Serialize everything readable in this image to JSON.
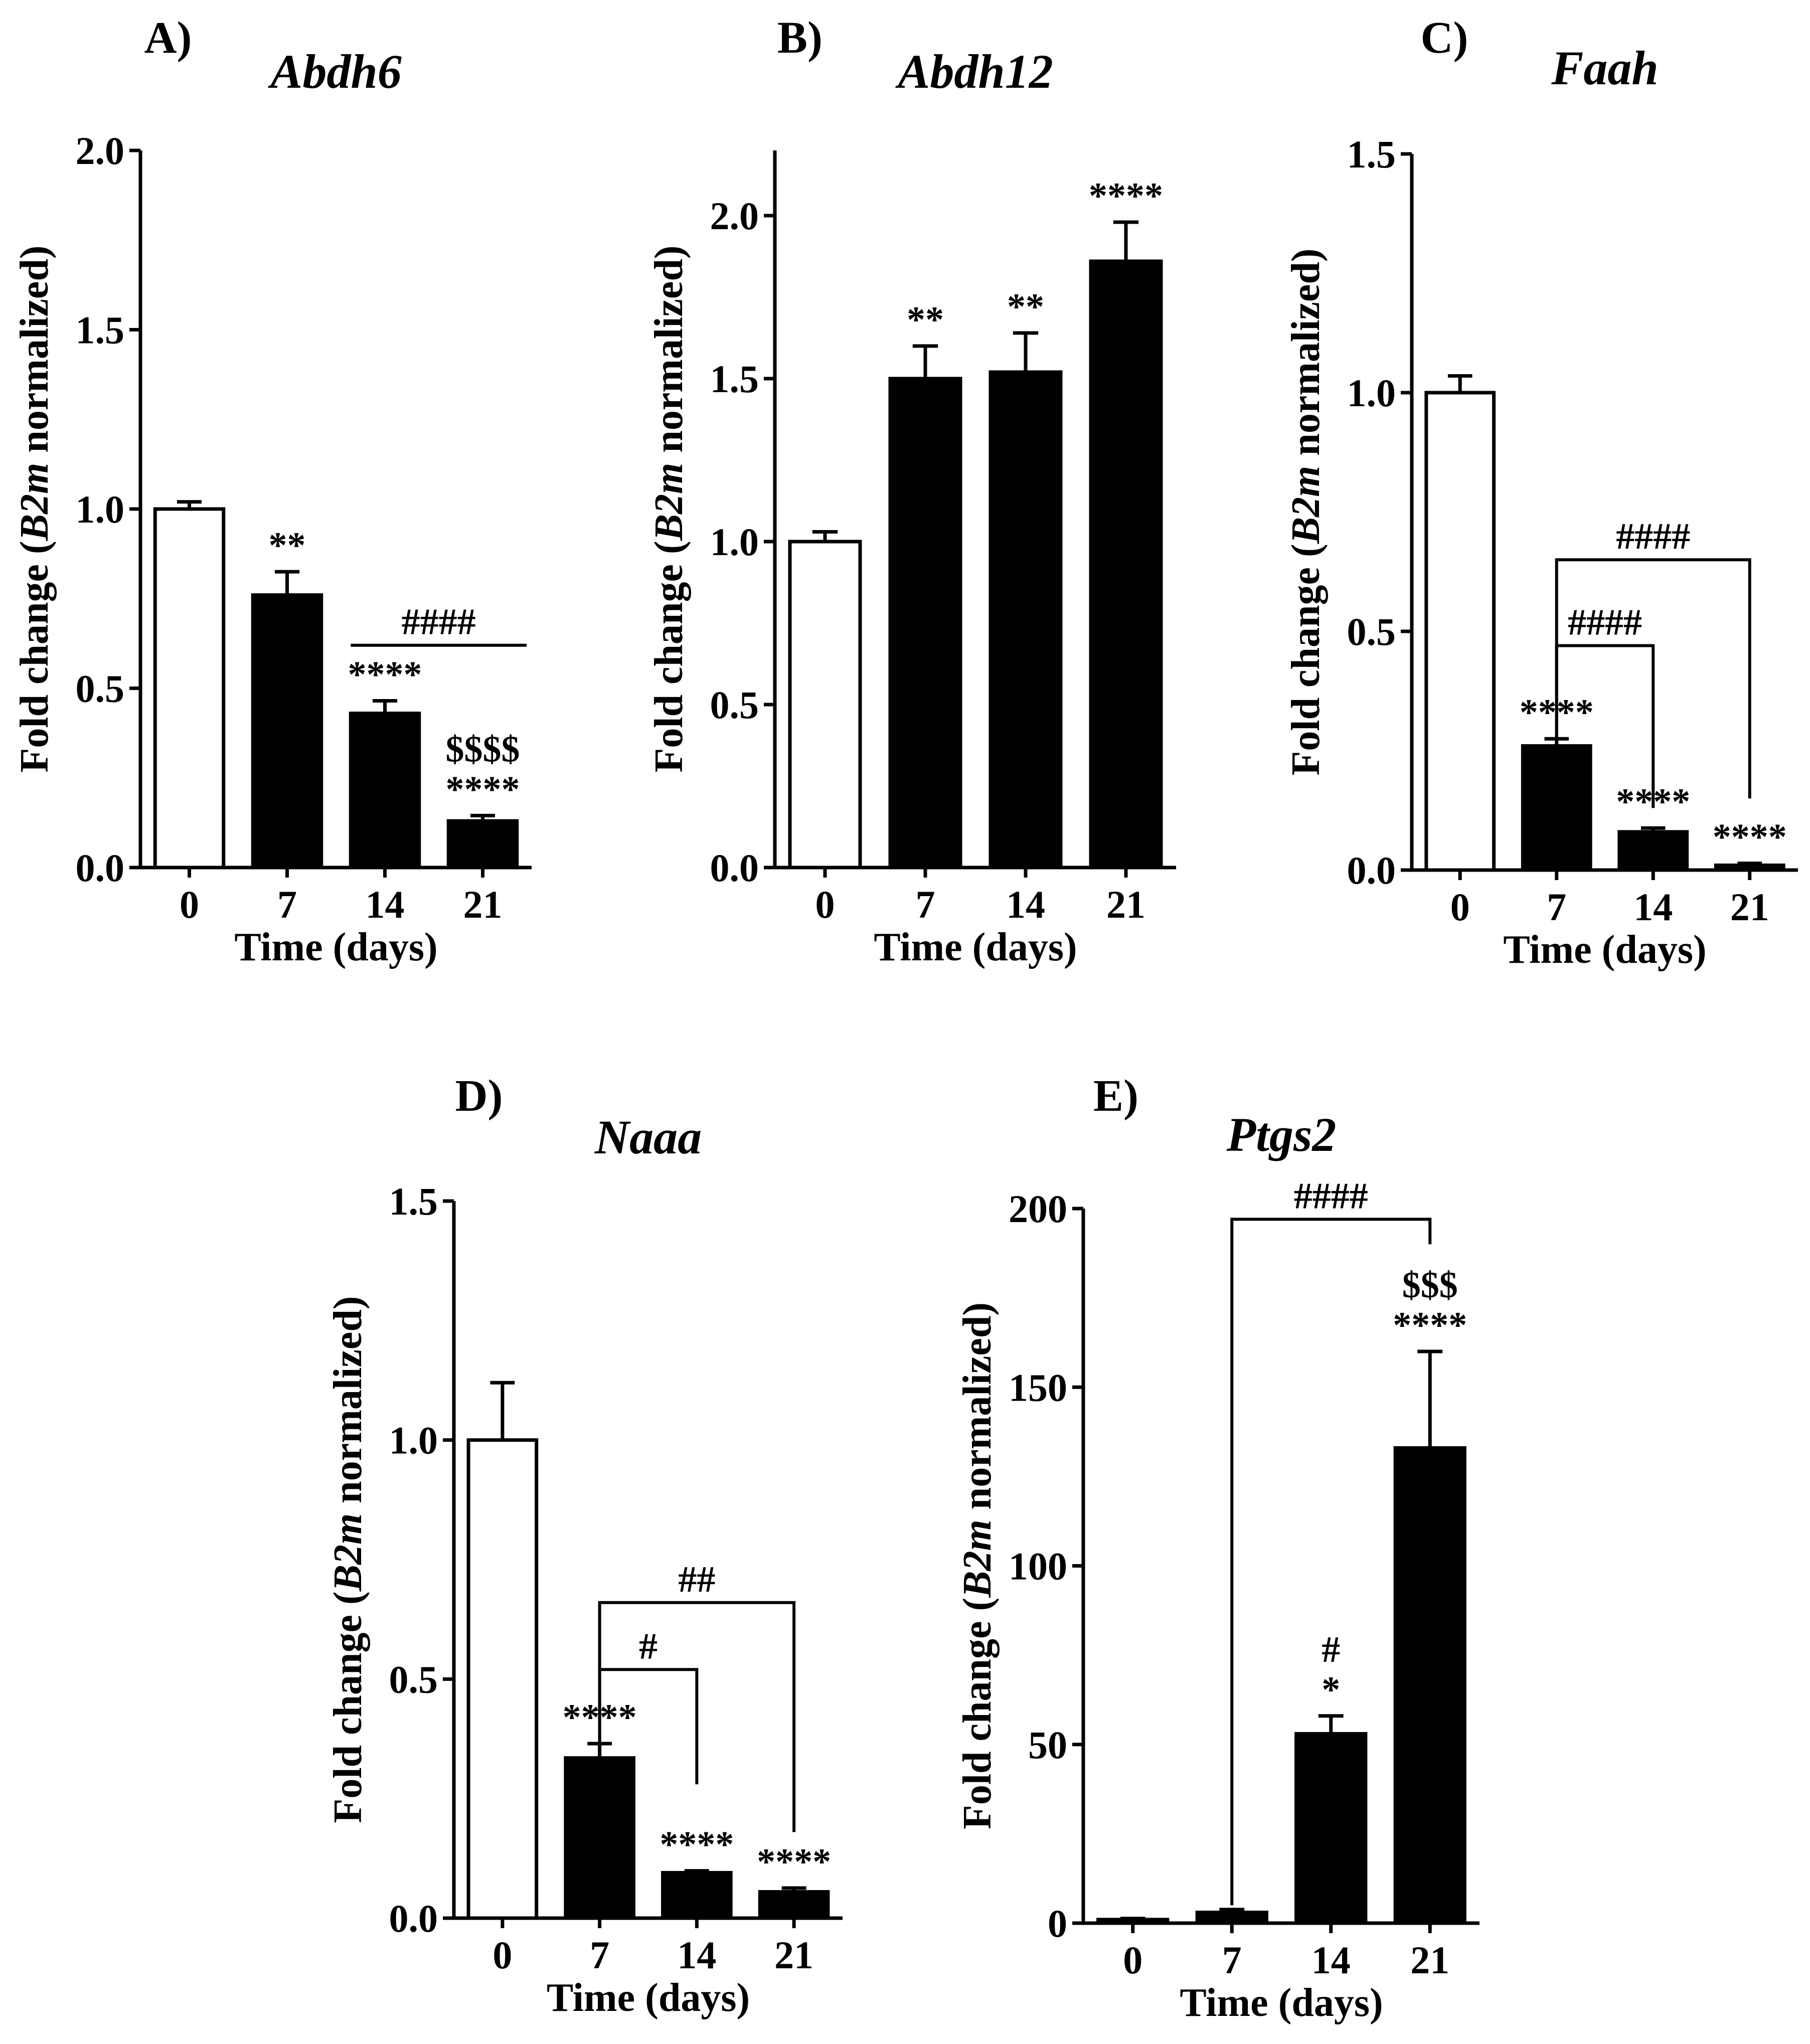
{
  "figure": {
    "xlabel": "Time (days)",
    "ylabel": {
      "prefix": "Fold change (",
      "gene": "B2m",
      "suffix": " normalized)"
    }
  },
  "colors": {
    "control": "#ffffff",
    "treated": "#000000",
    "outline": "#000000"
  },
  "chart_data": [
    {
      "type": "bar",
      "panel": "A)",
      "title": "Abdh6",
      "categories": [
        "0",
        "7",
        "14",
        "21"
      ],
      "values": [
        1.0,
        0.76,
        0.43,
        0.13
      ],
      "errors": [
        0.02,
        0.065,
        0.035,
        0.015
      ],
      "fills": [
        "white",
        "black",
        "black",
        "black"
      ],
      "ylim": [
        0,
        2.0
      ],
      "yticks": [
        "0.0",
        "0.5",
        "1.0",
        "1.5",
        "2.0"
      ],
      "xlabel": "Time (days)",
      "ylabel": "Fold change (B2m normalized)",
      "annotations": [
        {
          "bar": 1,
          "lines": [
            "**"
          ]
        },
        {
          "bar": 2,
          "lines": [
            "****"
          ]
        },
        {
          "bar": 3,
          "lines": [
            "$$$$",
            "****"
          ]
        }
      ],
      "comparisons": [
        {
          "from": 2,
          "to": 3,
          "label": "####",
          "style": "line",
          "y": 0.62
        }
      ]
    },
    {
      "type": "bar",
      "panel": "B)",
      "title": "Abdh12",
      "categories": [
        "0",
        "7",
        "14",
        "21"
      ],
      "values": [
        1.0,
        1.5,
        1.52,
        1.86
      ],
      "errors": [
        0.03,
        0.1,
        0.12,
        0.12
      ],
      "fills": [
        "white",
        "black",
        "black",
        "black"
      ],
      "ylim": [
        0,
        2.2
      ],
      "yticks": [
        "0.0",
        "0.5",
        "1.0",
        "1.5",
        "2.0"
      ],
      "xlabel": "Time (days)",
      "ylabel": "Fold change (B2m normalized)",
      "annotations": [
        {
          "bar": 1,
          "lines": [
            "**"
          ]
        },
        {
          "bar": 2,
          "lines": [
            "**"
          ]
        },
        {
          "bar": 3,
          "lines": [
            "****"
          ]
        }
      ],
      "comparisons": []
    },
    {
      "type": "bar",
      "panel": "C)",
      "title": "Faah",
      "categories": [
        "0",
        "7",
        "14",
        "21"
      ],
      "values": [
        1.0,
        0.26,
        0.08,
        0.01
      ],
      "errors": [
        0.035,
        0.015,
        0.008,
        0.004
      ],
      "fills": [
        "white",
        "black",
        "black",
        "black"
      ],
      "ylim": [
        0,
        1.5
      ],
      "yticks": [
        "0.0",
        "0.5",
        "1.0",
        "1.5"
      ],
      "xlabel": "Time (days)",
      "ylabel": "Fold change (B2m normalized)",
      "annotations": [
        {
          "bar": 1,
          "lines": [
            "****"
          ]
        },
        {
          "bar": 2,
          "lines": [
            "****"
          ]
        },
        {
          "bar": 3,
          "lines": [
            "****"
          ]
        }
      ],
      "comparisons": [
        {
          "from": 1,
          "to": 2,
          "label": "####",
          "style": "bracket",
          "y": 0.47,
          "drop_to": 0.13
        },
        {
          "from": 1,
          "to": 3,
          "label": "####",
          "style": "bracket",
          "y": 0.65,
          "drop_to": 0.15
        }
      ]
    },
    {
      "type": "bar",
      "panel": "D)",
      "title": "Naaa",
      "categories": [
        "0",
        "7",
        "14",
        "21"
      ],
      "values": [
        1.0,
        0.335,
        0.095,
        0.055
      ],
      "errors": [
        0.12,
        0.03,
        0.004,
        0.008
      ],
      "fills": [
        "white",
        "black",
        "black",
        "black"
      ],
      "ylim": [
        0,
        1.5
      ],
      "yticks": [
        "0.0",
        "0.5",
        "1.0",
        "1.5"
      ],
      "xlabel": "Time (days)",
      "ylabel": "Fold change (B2m normalized)",
      "annotations": [
        {
          "bar": 1,
          "lines": [
            "****"
          ]
        },
        {
          "bar": 2,
          "lines": [
            "****"
          ]
        },
        {
          "bar": 3,
          "lines": [
            "****"
          ]
        }
      ],
      "comparisons": [
        {
          "from": 1,
          "to": 2,
          "label": "#",
          "style": "bracket",
          "y": 0.52,
          "drop_to": 0.28
        },
        {
          "from": 1,
          "to": 3,
          "label": "##",
          "style": "bracket",
          "y": 0.66,
          "drop_to": 0.18
        }
      ]
    },
    {
      "type": "bar",
      "panel": "E)",
      "title": "Ptgs2",
      "categories": [
        "0",
        "7",
        "14",
        "21"
      ],
      "values": [
        1.0,
        3.0,
        53.0,
        133.0
      ],
      "errors": [
        0.3,
        0.8,
        5.0,
        27.0
      ],
      "fills": [
        "black",
        "black",
        "black",
        "black"
      ],
      "ylim": [
        0,
        200
      ],
      "yticks": [
        "0",
        "50",
        "100",
        "150",
        "200"
      ],
      "xlabel": "Time (days)",
      "ylabel": "Fold change (B2m normalized)",
      "annotations": [
        {
          "bar": 2,
          "lines": [
            "#",
            "*"
          ]
        },
        {
          "bar": 3,
          "lines": [
            "$$$",
            "****"
          ]
        }
      ],
      "comparisons": [
        {
          "from": 1,
          "to": 3,
          "label": "####",
          "style": "bracket",
          "y": 197,
          "drop_to": 5,
          "drop_to_end": 190
        }
      ]
    }
  ]
}
